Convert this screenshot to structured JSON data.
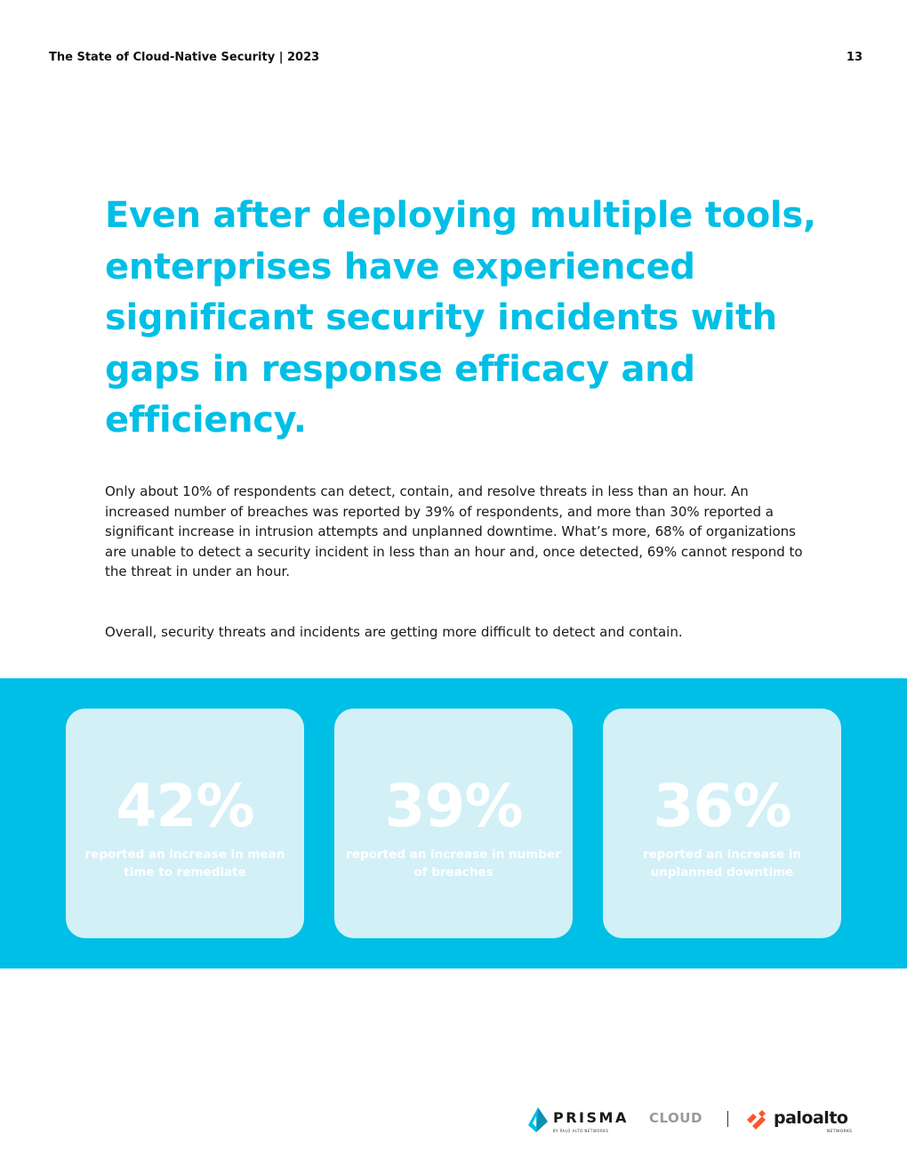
{
  "header": {
    "title": "The State of Cloud-Native Security | 2023",
    "page_number": "13"
  },
  "headline": "Even after deploying multiple tools, enterprises have experienced significant security incidents with gaps in response efficacy and efficiency.",
  "body": {
    "paragraph_1": "Only about 10% of respondents can detect, contain, and resolve threats in less than an hour. An increased number of breaches was reported by 39% of respondents, and more than 30% reported a significant increase in intrusion attempts and unplanned downtime. What’s more, 68% of organizations are unable to detect a security incident in less than an hour and, once detected, 69% cannot respond to the threat in under an hour.",
    "paragraph_2": "Overall, security threats and incidents are getting more difficult to detect and contain."
  },
  "stats": [
    {
      "value": "42%",
      "label": "reported an increase in mean time to remediate"
    },
    {
      "value": "39%",
      "label": "reported an increase in number of breaches"
    },
    {
      "value": "36%",
      "label": "reported an increase in unplanned downtime"
    }
  ],
  "logos": {
    "prisma_word": "PRISMA",
    "prisma_cloud": "CLOUD",
    "prisma_sub": "BY PALO ALTO NETWORKS",
    "paloalto_word": "paloalto",
    "paloalto_sub": "NETWORKS"
  },
  "colors": {
    "accent": "#00bfe6",
    "card": "#d3f0f7",
    "paloalto_orange": "#fa582d"
  }
}
